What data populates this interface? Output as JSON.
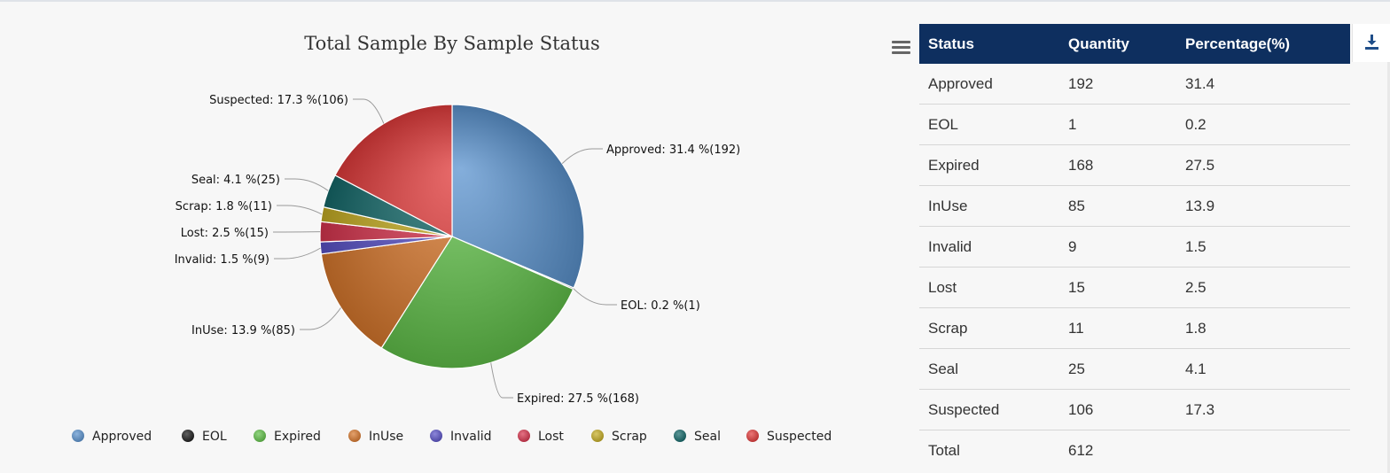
{
  "chart_data": {
    "type": "pie",
    "title": "Total Sample By Sample Status",
    "categories": [
      "Approved",
      "EOL",
      "Expired",
      "InUse",
      "Invalid",
      "Lost",
      "Scrap",
      "Seal",
      "Suspected"
    ],
    "values": [
      192,
      1,
      168,
      85,
      9,
      15,
      11,
      25,
      106
    ],
    "percentages": [
      31.4,
      0.2,
      27.5,
      13.9,
      1.5,
      2.5,
      1.8,
      4.1,
      17.3
    ],
    "data_labels": [
      "Approved: 31.4 %(192)",
      "EOL: 0.2 %(1)",
      "Expired: 27.5 %(168)",
      "InUse: 13.9 %(85)",
      "Invalid: 1.5 %(9)",
      "Lost: 2.5 %(15)",
      "Scrap: 1.8 %(11)",
      "Seal: 4.1 %(25)",
      "Suspected: 17.3 %(106)"
    ],
    "colors": [
      "#5b93cf",
      "#1c1c1c",
      "#62c24a",
      "#d9782d",
      "#5a52c8",
      "#d8344e",
      "#c6ad23",
      "#14696a",
      "#e23b3b"
    ],
    "legend": [
      "Approved",
      "EOL",
      "Expired",
      "InUse",
      "Invalid",
      "Lost",
      "Scrap",
      "Seal",
      "Suspected"
    ],
    "legend_position": "bottom"
  },
  "menu_icon": "hamburger-icon",
  "download_icon": "download-icon",
  "table": {
    "headers": [
      "Status",
      "Quantity",
      "Percentage(%)"
    ],
    "rows": [
      [
        "Approved",
        "192",
        "31.4"
      ],
      [
        "EOL",
        "1",
        "0.2"
      ],
      [
        "Expired",
        "168",
        "27.5"
      ],
      [
        "InUse",
        "85",
        "13.9"
      ],
      [
        "Invalid",
        "9",
        "1.5"
      ],
      [
        "Lost",
        "15",
        "2.5"
      ],
      [
        "Scrap",
        "11",
        "1.8"
      ],
      [
        "Seal",
        "25",
        "4.1"
      ],
      [
        "Suspected",
        "106",
        "17.3"
      ],
      [
        "Total",
        "612",
        ""
      ]
    ],
    "header_bg": "#0e2f5f"
  }
}
